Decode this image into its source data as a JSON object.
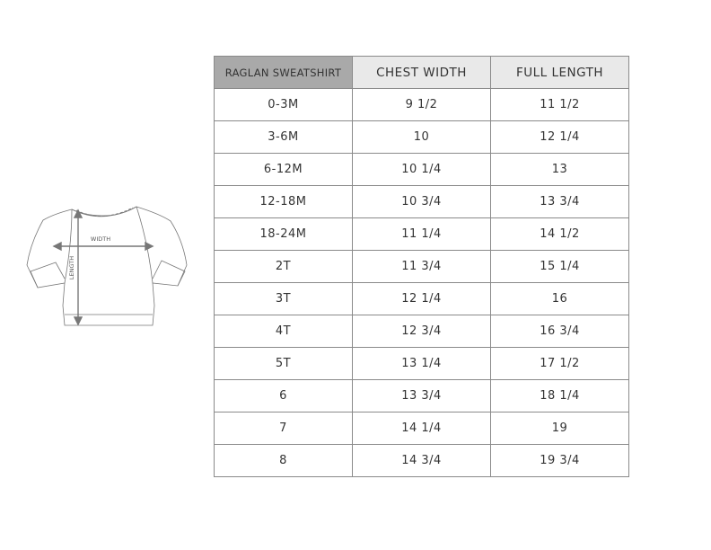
{
  "illustration": {
    "width_label": "WIDTH",
    "length_label": "LENGTH"
  },
  "table": {
    "headers": [
      "RAGLAN SWEATSHIRT",
      "CHEST WIDTH",
      "FULL LENGTH"
    ],
    "rows": [
      [
        "0-3M",
        "9 1/2",
        "11 1/2"
      ],
      [
        "3-6M",
        "10",
        "12 1/4"
      ],
      [
        "6-12M",
        "10 1/4",
        "13"
      ],
      [
        "12-18M",
        "10 3/4",
        "13 3/4"
      ],
      [
        "18-24M",
        "11 1/4",
        "14 1/2"
      ],
      [
        "2T",
        "11 3/4",
        "15 1/4"
      ],
      [
        "3T",
        "12 1/4",
        "16"
      ],
      [
        "4T",
        "12 3/4",
        "16 3/4"
      ],
      [
        "5T",
        "13 1/4",
        "17 1/2"
      ],
      [
        "6",
        "13 3/4",
        "18 1/4"
      ],
      [
        "7",
        "14 1/4",
        "19"
      ],
      [
        "8",
        "14 3/4",
        "19 3/4"
      ]
    ]
  },
  "colors": {
    "header_first": "#a9a9a9",
    "header": "#e9e9e9",
    "border": "#8a8a8a",
    "arrow": "#777777"
  }
}
